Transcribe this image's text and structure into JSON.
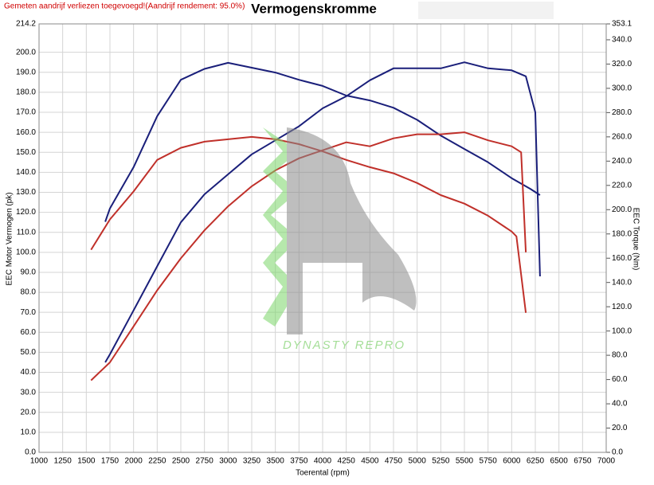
{
  "chart_data": {
    "type": "line",
    "title": "Vermogenskromme",
    "subtitle": "Gemeten aandrijf verliezen toegevoegd!(Aandrijf rendement: 95.0%)",
    "x_label": "Toerental (rpm)",
    "y_label": "EEC Motor Vermogen (pk)",
    "y2_label": "EEC Torque (Nm)",
    "watermark": "DYNASTY REPRO",
    "grid": true,
    "xlim": [
      1000,
      7000
    ],
    "xticks": [
      1000,
      1250,
      1500,
      1750,
      2000,
      2250,
      2500,
      2750,
      3000,
      3250,
      3500,
      3750,
      4000,
      4250,
      4500,
      4750,
      5000,
      5250,
      5500,
      5750,
      6000,
      6250,
      6500,
      6750,
      7000
    ],
    "ylim": [
      0,
      214.2
    ],
    "yticks": [
      {
        "value": 0,
        "label": "0.0"
      },
      {
        "value": 10,
        "label": "10.0"
      },
      {
        "value": 20,
        "label": "20.0"
      },
      {
        "value": 30,
        "label": "30.0"
      },
      {
        "value": 40,
        "label": "40.0"
      },
      {
        "value": 50,
        "label": "50.0"
      },
      {
        "value": 60,
        "label": "60.0"
      },
      {
        "value": 70,
        "label": "70.0"
      },
      {
        "value": 80,
        "label": "80.0"
      },
      {
        "value": 90,
        "label": "90.0"
      },
      {
        "value": 100,
        "label": "100.0"
      },
      {
        "value": 110,
        "label": "110.0"
      },
      {
        "value": 120,
        "label": "120.0"
      },
      {
        "value": 130,
        "label": "130.0"
      },
      {
        "value": 140,
        "label": "140.0"
      },
      {
        "value": 150,
        "label": "150.0"
      },
      {
        "value": 160,
        "label": "160.0"
      },
      {
        "value": 170,
        "label": "170.0"
      },
      {
        "value": 180,
        "label": "180.0"
      },
      {
        "value": 190,
        "label": "190.0"
      },
      {
        "value": 200,
        "label": "200.0"
      },
      214.2
    ],
    "y2lim": [
      0,
      353.1
    ],
    "y2ticks": [
      {
        "value": 0,
        "label": "0.0"
      },
      {
        "value": 20,
        "label": "20.0"
      },
      {
        "value": 40,
        "label": "40.0"
      },
      {
        "value": 60,
        "label": "60.0"
      },
      {
        "value": 80,
        "label": "80.0"
      },
      {
        "value": 100,
        "label": "100.0"
      },
      {
        "value": 120,
        "label": "120.0"
      },
      {
        "value": 140,
        "label": "140.0"
      },
      {
        "value": 160,
        "label": "160.0"
      },
      {
        "value": 180,
        "label": "180.0"
      },
      {
        "value": 200,
        "label": "200.0"
      },
      {
        "value": 220,
        "label": "220.0"
      },
      {
        "value": 240,
        "label": "240.0"
      },
      {
        "value": 260,
        "label": "260.0"
      },
      {
        "value": 280,
        "label": "280.0"
      },
      {
        "value": 300,
        "label": "300.0"
      },
      {
        "value": 320,
        "label": "320.0"
      },
      {
        "value": 340,
        "label": "340.0"
      },
      353.1
    ],
    "series": [
      {
        "color": "#1a1f7a",
        "axis": "y",
        "x": [
          1700,
          1750,
          2000,
          2250,
          2500,
          2750,
          3000,
          3250,
          3500,
          3750,
          4000,
          4250,
          4500,
          4750,
          5000,
          5250,
          5500,
          5750,
          6000,
          6150,
          6250,
          6300
        ],
        "values": [
          45,
          49,
          71,
          93,
          115,
          129,
          139,
          149,
          156,
          163,
          172,
          178,
          186,
          192,
          192,
          192,
          195,
          192,
          191,
          188,
          170,
          88
        ]
      },
      {
        "color": "#1a1f7a",
        "axis": "y2",
        "x": [
          1700,
          1750,
          2000,
          2250,
          2500,
          2750,
          3000,
          3250,
          3500,
          3750,
          4000,
          4250,
          4500,
          4750,
          5000,
          5250,
          5500,
          5750,
          6000,
          6200,
          6300
        ],
        "values": [
          190,
          201,
          235,
          277,
          307,
          316,
          321,
          317,
          313,
          307,
          302,
          294,
          290,
          284,
          274,
          261,
          250,
          239,
          226,
          217,
          212
        ]
      },
      {
        "color": "#c0302a",
        "axis": "y",
        "x": [
          1550,
          1750,
          2000,
          2250,
          2500,
          2750,
          3000,
          3250,
          3500,
          3750,
          4000,
          4250,
          4500,
          4750,
          5000,
          5250,
          5500,
          5750,
          6000,
          6100,
          6150
        ],
        "values": [
          36,
          45,
          63,
          81,
          97,
          111,
          123,
          133,
          141,
          147,
          151,
          155,
          153,
          157,
          159,
          159,
          160,
          156,
          153,
          150,
          100
        ]
      },
      {
        "color": "#c0302a",
        "axis": "y2",
        "x": [
          1550,
          1750,
          2000,
          2250,
          2500,
          2750,
          3000,
          3250,
          3500,
          3750,
          4000,
          4250,
          4500,
          4750,
          5000,
          5250,
          5500,
          5750,
          6000,
          6050,
          6150
        ],
        "values": [
          167,
          192,
          215,
          241,
          251,
          256,
          258,
          260,
          258,
          254,
          248,
          241,
          235,
          230,
          222,
          212,
          205,
          195,
          182,
          178,
          115
        ]
      }
    ]
  }
}
